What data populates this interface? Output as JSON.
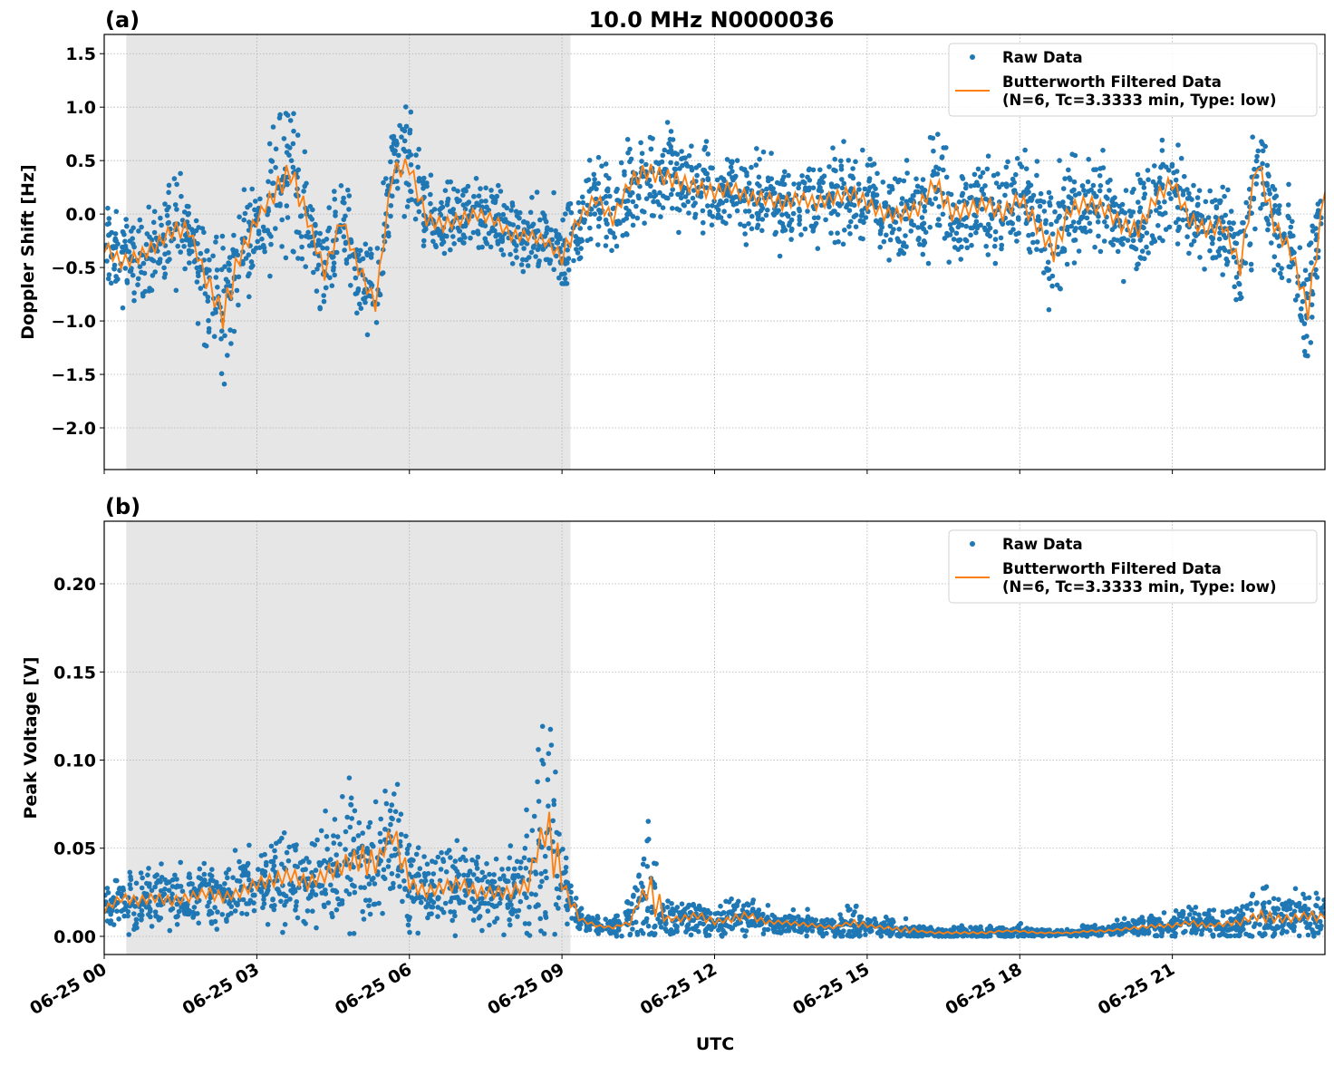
{
  "chart_data": [
    {
      "type": "scatter",
      "panel_label": "(a)",
      "title": "10.0 MHz N0000036",
      "xlabel": "",
      "ylabel": "Doppler Shift [Hz]",
      "ylim": [
        -2.39,
        1.68
      ],
      "yticks": [
        1.5,
        1.0,
        0.5,
        0.0,
        -0.5,
        -1.0,
        -1.5,
        -2.0
      ],
      "ytick_labels": [
        "1.5",
        "1.0",
        "0.5",
        "0.0",
        "−0.5",
        "−1.0",
        "−1.5",
        "−2.0"
      ],
      "xlim": [
        "06-25 00:00",
        "06-26 00:00"
      ],
      "shaded_span": [
        "06-25 00:26",
        "06-25 09:10"
      ],
      "grid": true,
      "legend_position": "top-right",
      "legend": [
        "Raw Data",
        [
          "Butterworth Filtered Data",
          "(N=6, Tc=3.3333 min, Type: low)"
        ]
      ],
      "sample_interval_minutes": 20,
      "series": [
        {
          "name": "Butterworth Filtered Data",
          "color": "#ff7f0e",
          "values": [
            -0.3,
            -0.45,
            -0.4,
            -0.3,
            -0.15,
            -0.15,
            -0.6,
            -0.95,
            -0.4,
            -0.05,
            0.2,
            0.4,
            -0.05,
            -0.55,
            -0.05,
            -0.5,
            -0.85,
            0.4,
            0.45,
            -0.05,
            -0.1,
            -0.05,
            0.0,
            -0.05,
            -0.2,
            -0.2,
            -0.25,
            -0.4,
            -0.05,
            0.15,
            -0.05,
            0.3,
            0.4,
            0.35,
            0.3,
            0.25,
            0.2,
            0.25,
            0.15,
            0.15,
            0.1,
            0.15,
            0.1,
            0.15,
            0.2,
            0.1,
            0.0,
            0.0,
            0.05,
            0.3,
            0.0,
            0.05,
            0.1,
            0.0,
            0.15,
            -0.1,
            -0.35,
            0.05,
            0.1,
            0.05,
            -0.1,
            -0.15,
            0.15,
            0.3,
            -0.05,
            -0.15,
            -0.1,
            -0.5,
            0.5,
            -0.1,
            -0.35,
            -0.9,
            0.2
          ]
        },
        {
          "name": "Raw Data",
          "color": "#1f77b4",
          "spread": [
            0.35,
            0.35,
            0.35,
            0.35,
            0.45,
            0.35,
            0.55,
            0.7,
            0.45,
            0.35,
            0.6,
            0.6,
            0.4,
            0.4,
            0.35,
            0.4,
            0.35,
            0.45,
            0.45,
            0.35,
            0.35,
            0.35,
            0.3,
            0.3,
            0.3,
            0.3,
            0.3,
            0.45,
            0.35,
            0.35,
            0.35,
            0.45,
            0.45,
            0.45,
            0.4,
            0.4,
            0.35,
            0.35,
            0.35,
            0.35,
            0.35,
            0.35,
            0.35,
            0.35,
            0.4,
            0.35,
            0.35,
            0.4,
            0.4,
            0.5,
            0.4,
            0.4,
            0.4,
            0.4,
            0.45,
            0.45,
            0.55,
            0.4,
            0.4,
            0.4,
            0.4,
            0.4,
            0.4,
            0.4,
            0.4,
            0.4,
            0.4,
            0.45,
            0.5,
            0.4,
            0.45,
            0.5,
            0.45
          ]
        }
      ]
    },
    {
      "type": "scatter",
      "panel_label": "(b)",
      "xlabel": "UTC",
      "ylabel": "Peak Voltage [V]",
      "ylim": [
        -0.0103,
        0.2355
      ],
      "yticks": [
        0.0,
        0.05,
        0.1,
        0.15,
        0.2
      ],
      "ytick_labels": [
        "0.00",
        "0.05",
        "0.10",
        "0.15",
        "0.20"
      ],
      "xlim": [
        "06-25 00:00",
        "06-26 00:00"
      ],
      "xtick_labels": [
        "06-25 00",
        "06-25 03",
        "06-25 06",
        "06-25 09",
        "06-25 12",
        "06-25 15",
        "06-25 18",
        "06-25 21"
      ],
      "shaded_span": [
        "06-25 00:26",
        "06-25 09:10"
      ],
      "grid": true,
      "legend_position": "top-right",
      "legend": [
        "Raw Data",
        [
          "Butterworth Filtered Data",
          "(N=6, Tc=3.3333 min, Type: low)"
        ]
      ],
      "sample_interval_minutes": 20,
      "series": [
        {
          "name": "Butterworth Filtered Data",
          "color": "#ff7f0e",
          "values": [
            0.015,
            0.022,
            0.02,
            0.022,
            0.02,
            0.022,
            0.025,
            0.022,
            0.025,
            0.03,
            0.032,
            0.035,
            0.03,
            0.035,
            0.04,
            0.045,
            0.04,
            0.06,
            0.03,
            0.025,
            0.028,
            0.03,
            0.025,
            0.025,
            0.025,
            0.03,
            0.065,
            0.03,
            0.01,
            0.006,
            0.005,
            0.008,
            0.03,
            0.01,
            0.01,
            0.012,
            0.008,
            0.01,
            0.012,
            0.008,
            0.008,
            0.007,
            0.006,
            0.005,
            0.008,
            0.006,
            0.005,
            0.004,
            0.003,
            0.002,
            0.002,
            0.002,
            0.002,
            0.003,
            0.003,
            0.002,
            0.002,
            0.002,
            0.003,
            0.003,
            0.004,
            0.005,
            0.006,
            0.006,
            0.008,
            0.006,
            0.007,
            0.008,
            0.012,
            0.01,
            0.01,
            0.012,
            0.01
          ]
        },
        {
          "name": "Raw Data",
          "color": "#1f77b4",
          "spread": [
            0.012,
            0.015,
            0.015,
            0.015,
            0.015,
            0.015,
            0.018,
            0.015,
            0.018,
            0.02,
            0.022,
            0.022,
            0.02,
            0.025,
            0.03,
            0.045,
            0.025,
            0.04,
            0.02,
            0.018,
            0.02,
            0.02,
            0.018,
            0.018,
            0.02,
            0.03,
            0.08,
            0.02,
            0.006,
            0.004,
            0.004,
            0.01,
            0.05,
            0.008,
            0.01,
            0.012,
            0.008,
            0.012,
            0.01,
            0.006,
            0.006,
            0.006,
            0.005,
            0.004,
            0.01,
            0.005,
            0.005,
            0.008,
            0.003,
            0.003,
            0.003,
            0.003,
            0.003,
            0.003,
            0.003,
            0.002,
            0.002,
            0.002,
            0.003,
            0.003,
            0.004,
            0.005,
            0.006,
            0.006,
            0.008,
            0.006,
            0.008,
            0.01,
            0.018,
            0.012,
            0.012,
            0.014,
            0.012
          ]
        }
      ]
    }
  ]
}
